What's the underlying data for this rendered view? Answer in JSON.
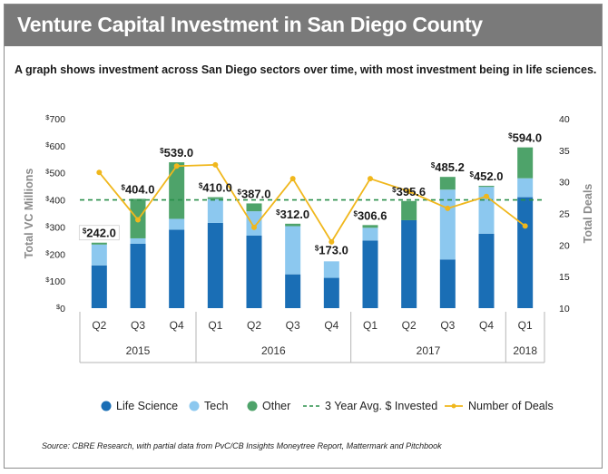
{
  "title": "Venture Capital Investment in San Diego County",
  "subtitle": "A graph shows investment across San Diego sectors over time, with most investment being in life sciences.",
  "source": "Source: CBRE Research, with partial data from PvC/CB Insights Moneytree Report, Mattermark and Pitchbook",
  "colors": {
    "header_bg": "#7a7a7a",
    "life_science": "#1a6eb5",
    "tech": "#8cc8ef",
    "other": "#4ea36a",
    "avg_line": "#2a8f4a",
    "deals_line": "#f0b71c"
  },
  "chart_data": {
    "type": "bar",
    "stacked": true,
    "categories": [
      "Q2",
      "Q3",
      "Q4",
      "Q1",
      "Q2",
      "Q3",
      "Q4",
      "Q1",
      "Q2",
      "Q3",
      "Q4",
      "Q1"
    ],
    "year_groups": [
      {
        "label": "2015",
        "start": 0,
        "end": 2
      },
      {
        "label": "2016",
        "start": 3,
        "end": 6
      },
      {
        "label": "2017",
        "start": 7,
        "end": 10
      },
      {
        "label": "2018",
        "start": 11,
        "end": 11
      }
    ],
    "series": [
      {
        "name": "Life Science",
        "values": [
          158,
          238,
          290,
          315,
          268,
          125,
          112,
          250,
          325,
          180,
          275,
          410
        ]
      },
      {
        "name": "Tech",
        "values": [
          77,
          20,
          40,
          88,
          90,
          178,
          61,
          47,
          0,
          258,
          173,
          70
        ]
      },
      {
        "name": "Other",
        "values": [
          7,
          146,
          209,
          7,
          29,
          9,
          0,
          10,
          71,
          47,
          4,
          114
        ]
      }
    ],
    "totals": [
      242.0,
      404.0,
      539.0,
      410.0,
      387.0,
      312.0,
      173.0,
      306.6,
      395.6,
      485.2,
      452.0,
      594.0
    ],
    "total_labels": [
      "$242.0",
      "$404.0",
      "$539.0",
      "$410.0",
      "$387.0",
      "$312.0",
      "$173.0",
      "$306.6",
      "$395.6",
      "$485.2",
      "$452.0",
      "$594.0"
    ],
    "average_line": {
      "name": "3 Year Avg. $ Invested",
      "value": 400
    },
    "deals": {
      "name": "Number of Deals",
      "values": [
        31.5,
        24.0,
        32.5,
        32.7,
        22.8,
        30.5,
        20.5,
        30.5,
        28.5,
        25.8,
        27.7,
        23.0
      ]
    },
    "ylabel": "Total VC Millions",
    "y2label": "Total Deals",
    "ylim": [
      0,
      700
    ],
    "y2lim": [
      10,
      40
    ],
    "yticks": [
      "$0",
      "$100",
      "$200",
      "$300",
      "$400",
      "$500",
      "$600",
      "$700"
    ],
    "y2ticks": [
      "10",
      "15",
      "20",
      "25",
      "30",
      "35",
      "40"
    ],
    "legend": [
      "Life Science",
      "Tech",
      "Other",
      "3 Year Avg. $ Invested",
      "Number of Deals"
    ],
    "legend_position": "bottom"
  }
}
